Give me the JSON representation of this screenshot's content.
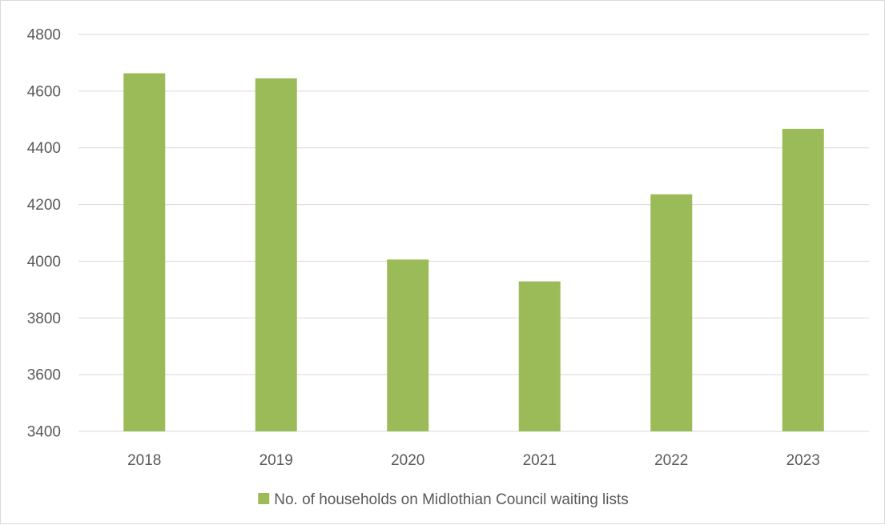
{
  "chart_data": {
    "type": "bar",
    "categories": [
      "2018",
      "2019",
      "2020",
      "2021",
      "2022",
      "2023"
    ],
    "series": [
      {
        "name": "No. of households on Midlothian Council waiting lists",
        "values": [
          4663,
          4645,
          4006,
          3929,
          4236,
          4467
        ],
        "color": "#9bbb59"
      }
    ],
    "ylim": [
      3400,
      4800
    ],
    "yticks": [
      3400,
      3600,
      3800,
      4000,
      4200,
      4400,
      4600,
      4800
    ],
    "title": "",
    "xlabel": "",
    "ylabel": "",
    "grid": true,
    "legend_position": "bottom",
    "gridline_color": "#d9d9d9",
    "text_color": "#595959"
  }
}
